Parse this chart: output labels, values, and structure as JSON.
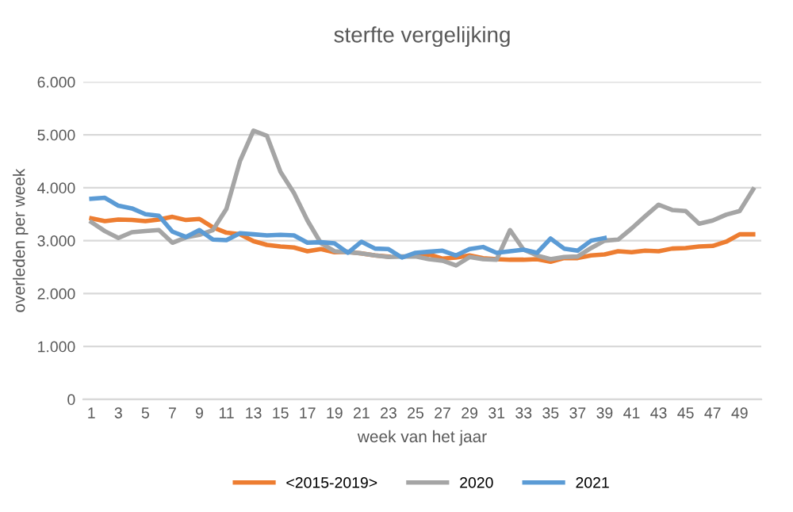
{
  "chart_data": {
    "type": "line",
    "title": "sterfte vergelijking",
    "xlabel": "week van het jaar",
    "ylabel": "overleden per week",
    "categories": [
      "1",
      null,
      "3",
      null,
      "5",
      null,
      "7",
      null,
      "9",
      null,
      "11",
      null,
      "13",
      null,
      "15",
      null,
      "17",
      null,
      "19",
      null,
      "21",
      null,
      "23",
      null,
      "25",
      null,
      "27",
      null,
      "29",
      null,
      "31",
      null,
      "33",
      null,
      "35",
      null,
      "37",
      null,
      "39",
      null,
      "41",
      null,
      "43",
      null,
      "45",
      null,
      "47",
      null,
      "49",
      null
    ],
    "series": [
      {
        "name": "<2015-2019>",
        "color": "#ed7d31",
        "values": [
          3420,
          3370,
          3400,
          3390,
          3370,
          3400,
          3450,
          3390,
          3410,
          3250,
          3150,
          3120,
          2990,
          2920,
          2890,
          2870,
          2800,
          2840,
          2780,
          2790,
          2760,
          2720,
          2700,
          null,
          2720,
          2740,
          2660,
          2680,
          2720,
          2670,
          2650,
          2640,
          2640,
          2650,
          2600,
          2670,
          2670,
          2720,
          2740,
          2800,
          2780,
          2810,
          2800,
          2850,
          2860,
          2890,
          2900,
          2980,
          3120,
          3120
        ]
      },
      {
        "name": "2020",
        "color": "#a5a5a5",
        "values": [
          3350,
          3180,
          3050,
          3160,
          3180,
          3200,
          2960,
          3060,
          3110,
          3200,
          3600,
          4500,
          5080,
          4980,
          4300,
          3900,
          3380,
          2950,
          2800,
          2780,
          2760,
          2720,
          2690,
          2700,
          2700,
          2650,
          2620,
          2530,
          2690,
          2650,
          2640,
          3200,
          2830,
          2720,
          2650,
          2690,
          2700,
          2860,
          3000,
          3020,
          3230,
          3460,
          3680,
          3580,
          3560,
          3320,
          3380,
          3490,
          3560,
          3970
        ]
      },
      {
        "name": "2021",
        "color": "#5b9bd5",
        "values": [
          3790,
          3810,
          3660,
          3610,
          3500,
          3470,
          3170,
          3070,
          3200,
          3020,
          3010,
          3140,
          3120,
          3100,
          3110,
          3100,
          2960,
          2970,
          2950,
          2770,
          2980,
          2850,
          2840,
          2680,
          2770,
          2790,
          2810,
          2720,
          2840,
          2880,
          2770,
          2800,
          2830,
          2770,
          3040,
          2850,
          2810,
          3000,
          3050,
          null,
          null,
          null,
          null,
          null,
          null,
          null,
          null,
          null,
          null,
          null
        ]
      }
    ],
    "ylim": [
      0,
      6000
    ],
    "yticks": [
      {
        "value": 0,
        "label": "0"
      },
      {
        "value": 1000,
        "label": "1.000"
      },
      {
        "value": 2000,
        "label": "2.000"
      },
      {
        "value": 3000,
        "label": "3.000"
      },
      {
        "value": 4000,
        "label": "4.000"
      },
      {
        "value": 5000,
        "label": "5.000"
      },
      {
        "value": 6000,
        "label": "6.000"
      }
    ],
    "grid": "y",
    "legend": "bottom",
    "marker": "none",
    "line_style": "solid"
  }
}
